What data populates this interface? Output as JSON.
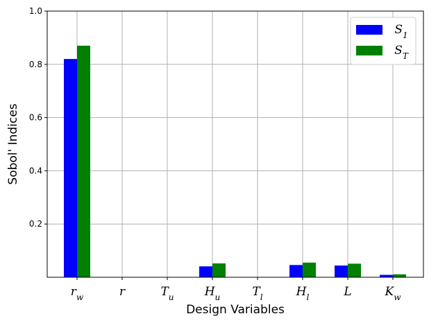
{
  "chart_data": {
    "type": "bar",
    "categories": [
      {
        "base": "r",
        "sub": "w"
      },
      {
        "base": "r",
        "sub": ""
      },
      {
        "base": "T",
        "sub": "u"
      },
      {
        "base": "H",
        "sub": "u"
      },
      {
        "base": "T",
        "sub": "l"
      },
      {
        "base": "H",
        "sub": "l"
      },
      {
        "base": "L",
        "sub": ""
      },
      {
        "base": "K",
        "sub": "w"
      }
    ],
    "series": [
      {
        "base": "S",
        "sub": "1",
        "color": "#0000ff",
        "values": [
          0.82,
          0.0,
          0.0,
          0.041,
          0.0,
          0.046,
          0.044,
          0.009
        ]
      },
      {
        "base": "S",
        "sub": "T",
        "color": "#008000",
        "values": [
          0.87,
          0.0,
          0.0,
          0.052,
          0.0,
          0.055,
          0.051,
          0.011
        ]
      }
    ],
    "xlabel": "Design Variables",
    "ylabel": "Sobol' Indices",
    "ylim": [
      0,
      1.0
    ],
    "yticks": [
      "0.2",
      "0.4",
      "0.6",
      "0.8",
      "1.0"
    ],
    "grid": true,
    "legend_position": "top-right"
  }
}
